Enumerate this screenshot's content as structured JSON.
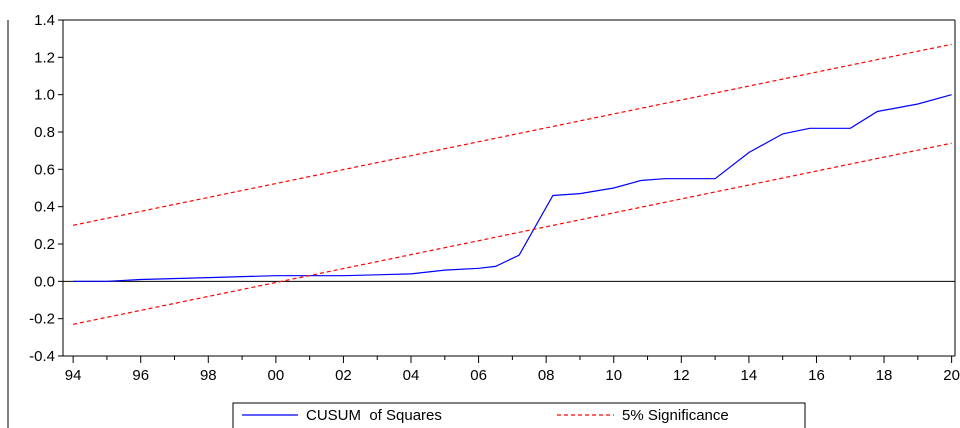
{
  "chart_data": {
    "type": "line",
    "title": "",
    "xlabel": "",
    "ylabel": "",
    "xlim": [
      1993.7,
      2020.1
    ],
    "ylim": [
      -0.4,
      1.4
    ],
    "y_ticks": [
      -0.4,
      -0.2,
      0.0,
      0.2,
      0.4,
      0.6,
      0.8,
      1.0,
      1.2,
      1.4
    ],
    "y_tick_labels": [
      "-0.4",
      "-0.2",
      "0.0",
      "0.2",
      "0.4",
      "0.6",
      "0.8",
      "1.0",
      "1.2",
      "1.4"
    ],
    "x_ticks": [
      1994,
      1996,
      1998,
      2000,
      2002,
      2004,
      2006,
      2008,
      2010,
      2012,
      2014,
      2016,
      2018,
      2020
    ],
    "x_tick_labels": [
      "94",
      "96",
      "98",
      "00",
      "02",
      "04",
      "06",
      "08",
      "10",
      "12",
      "14",
      "16",
      "18",
      "20"
    ],
    "zero_line": true,
    "grid": false,
    "legend_position": "bottom-center",
    "colors": {
      "cusum": "#0000ff",
      "significance": "#ff0000",
      "axis": "#000000"
    },
    "series": [
      {
        "name": "CUSUM  of Squares",
        "style": "solid",
        "x": [
          1994.0,
          1995.0,
          1996.0,
          1998.0,
          2000.0,
          2001.0,
          2002.0,
          2004.0,
          2005.0,
          2006.0,
          2006.5,
          2007.2,
          2008.2,
          2009.0,
          2010.0,
          2010.8,
          2011.5,
          2013.0,
          2014.0,
          2015.0,
          2015.8,
          2017.0,
          2017.8,
          2019.0,
          2020.0
        ],
        "y": [
          0.0,
          0.0,
          0.01,
          0.02,
          0.03,
          0.03,
          0.03,
          0.04,
          0.06,
          0.07,
          0.08,
          0.14,
          0.46,
          0.47,
          0.5,
          0.54,
          0.55,
          0.55,
          0.69,
          0.79,
          0.82,
          0.82,
          0.91,
          0.95,
          1.0
        ]
      },
      {
        "name": "5% Significance",
        "style": "dashed",
        "x": [
          1994.0,
          2020.0
        ],
        "y": [
          0.3,
          1.27
        ]
      },
      {
        "name": "",
        "legend": false,
        "style": "dashed",
        "x": [
          1994.0,
          2020.0
        ],
        "y": [
          -0.23,
          0.74
        ]
      }
    ],
    "legend": [
      "CUSUM  of Squares",
      "5% Significance"
    ]
  }
}
